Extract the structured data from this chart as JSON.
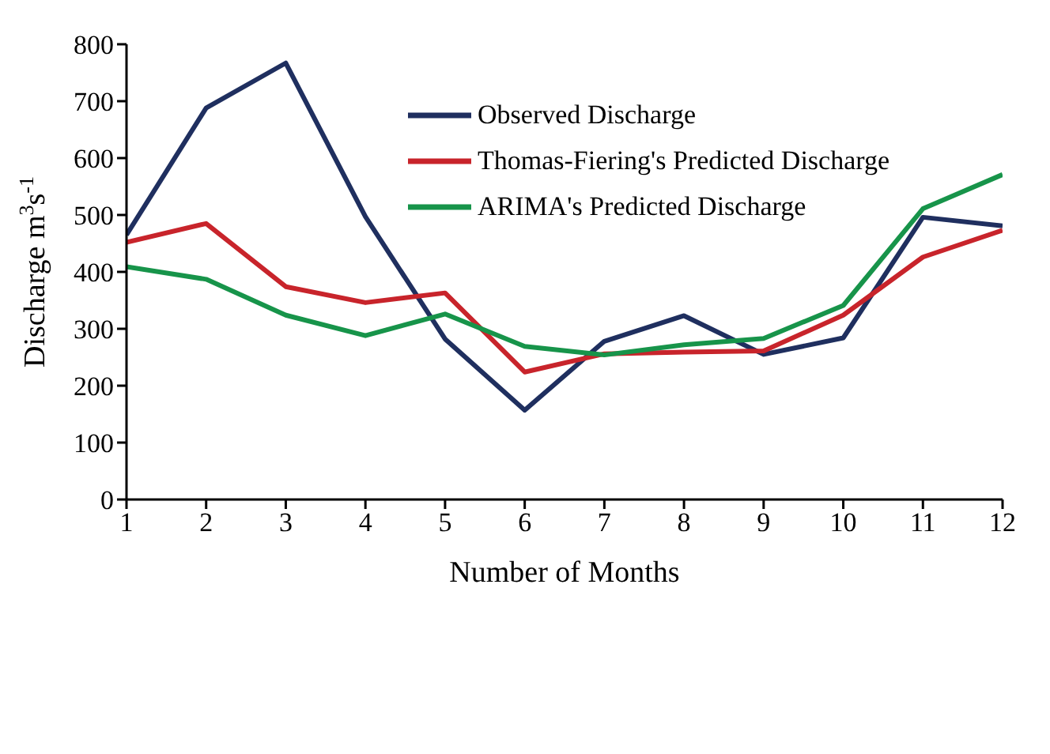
{
  "chart_data": {
    "type": "line",
    "xlabel": "Number of Months",
    "ylabel": "Discharge m$^{3}$s$^{-1}$",
    "x": [
      1,
      2,
      3,
      4,
      5,
      6,
      7,
      8,
      9,
      10,
      11,
      12
    ],
    "series": [
      {
        "name": "Observed Discharge",
        "color": "#1f2f5f",
        "values": [
          465,
          688,
          767,
          497,
          282,
          157,
          278,
          323,
          255,
          284,
          496,
          481
        ]
      },
      {
        "name": "Thomas-Fiering's Predicted Discharge",
        "color": "#c8242b",
        "values": [
          452,
          485,
          374,
          346,
          363,
          224,
          256,
          259,
          261,
          324,
          426,
          473
        ]
      },
      {
        "name": "ARIMA's Predicted Discharge",
        "color": "#17944a",
        "values": [
          409,
          387,
          324,
          288,
          326,
          269,
          254,
          272,
          283,
          341,
          511,
          571
        ]
      }
    ],
    "xlim": [
      1,
      12
    ],
    "xticks": [
      1,
      2,
      3,
      4,
      5,
      6,
      7,
      8,
      9,
      10,
      11,
      12
    ],
    "ylim": [
      0,
      800
    ],
    "yticks": [
      0,
      100,
      200,
      300,
      400,
      500,
      600,
      700,
      800
    ],
    "grid": false,
    "legend": "top",
    "marker": "none",
    "line_style": "solid"
  }
}
